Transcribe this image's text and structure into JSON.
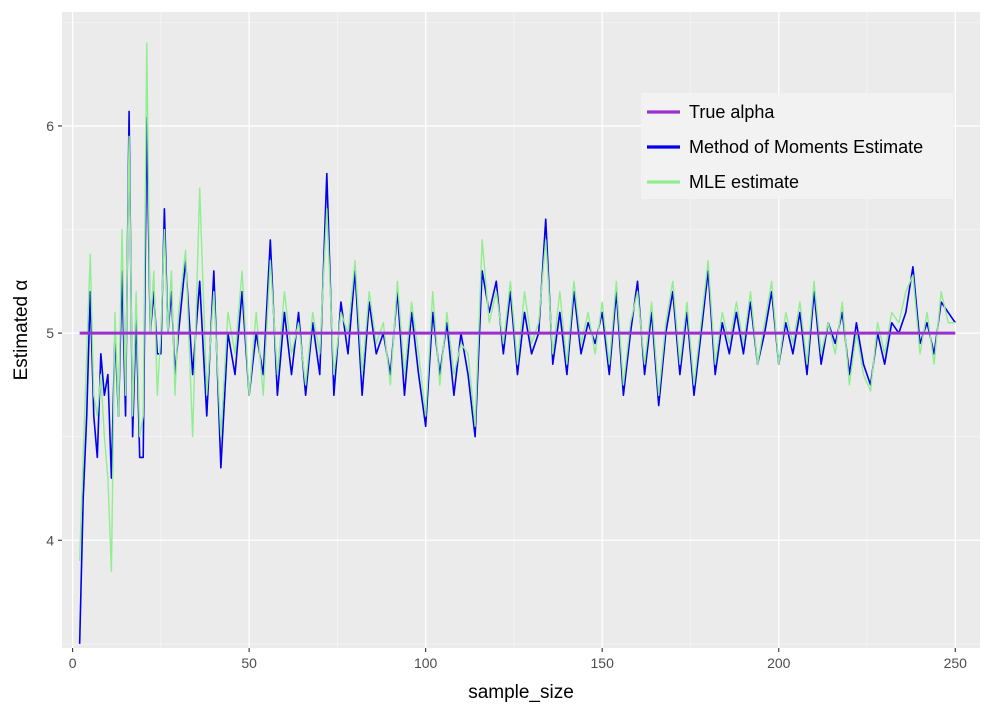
{
  "chart_data": {
    "type": "line",
    "xlabel": "sample_size",
    "ylabel": "Estimated α",
    "xlim": [
      -3,
      257
    ],
    "ylim": [
      3.48,
      6.55
    ],
    "x_ticks": [
      0,
      50,
      100,
      150,
      200,
      250
    ],
    "y_ticks": [
      4,
      5,
      6
    ],
    "grid": true,
    "legend_position": "top-right",
    "colors": {
      "panel": "#ebebeb",
      "grid_major": "#ffffff",
      "grid_minor": "#f5f5f5",
      "true_alpha": "#9b30d0",
      "mom": "#0000ee",
      "mle": "#90ee90"
    },
    "series": [
      {
        "name": "True alpha",
        "key": "true_alpha",
        "x": [
          2,
          250
        ],
        "y": [
          5.0,
          5.0
        ]
      },
      {
        "name": "Method of Moments Estimate",
        "key": "mom",
        "x": [
          2,
          3,
          4,
          5,
          6,
          7,
          8,
          9,
          10,
          11,
          12,
          13,
          14,
          15,
          16,
          17,
          18,
          19,
          20,
          21,
          22,
          23,
          24,
          25,
          26,
          27,
          28,
          29,
          30,
          32,
          34,
          36,
          38,
          40,
          42,
          44,
          46,
          48,
          50,
          52,
          54,
          56,
          58,
          60,
          62,
          64,
          66,
          68,
          70,
          72,
          74,
          76,
          78,
          80,
          82,
          84,
          86,
          88,
          90,
          92,
          94,
          96,
          98,
          100,
          102,
          104,
          106,
          108,
          110,
          112,
          114,
          116,
          118,
          120,
          122,
          124,
          126,
          128,
          130,
          132,
          134,
          136,
          138,
          140,
          142,
          144,
          146,
          148,
          150,
          152,
          154,
          156,
          158,
          160,
          162,
          164,
          166,
          168,
          170,
          172,
          174,
          176,
          178,
          180,
          182,
          184,
          186,
          188,
          190,
          192,
          194,
          196,
          198,
          200,
          202,
          204,
          206,
          208,
          210,
          212,
          214,
          216,
          218,
          220,
          222,
          224,
          226,
          228,
          230,
          232,
          234,
          236,
          238,
          240,
          242,
          244,
          246,
          248,
          250
        ],
        "y": [
          3.5,
          4.2,
          4.6,
          5.2,
          4.6,
          4.4,
          4.9,
          4.7,
          4.8,
          4.3,
          5.0,
          4.6,
          5.3,
          4.6,
          6.07,
          4.5,
          5.1,
          4.4,
          4.4,
          6.04,
          5.0,
          5.2,
          4.9,
          4.9,
          5.6,
          5.0,
          5.2,
          4.8,
          5.0,
          5.35,
          4.8,
          5.25,
          4.6,
          5.3,
          4.35,
          5.0,
          4.8,
          5.2,
          4.7,
          5.0,
          4.8,
          5.45,
          4.7,
          5.1,
          4.8,
          5.1,
          4.7,
          5.05,
          4.8,
          5.77,
          4.7,
          5.15,
          4.9,
          5.3,
          4.7,
          5.15,
          4.9,
          5.0,
          4.8,
          5.2,
          4.7,
          5.1,
          4.8,
          4.55,
          5.1,
          4.8,
          5.05,
          4.7,
          5.0,
          4.8,
          4.5,
          5.3,
          5.1,
          5.25,
          4.9,
          5.2,
          4.8,
          5.1,
          4.9,
          5.0,
          5.55,
          4.85,
          5.1,
          4.8,
          5.2,
          4.9,
          5.05,
          4.95,
          5.1,
          4.8,
          5.2,
          4.7,
          5.0,
          5.25,
          4.8,
          5.1,
          4.65,
          5.0,
          5.2,
          4.8,
          5.1,
          4.7,
          5.0,
          5.3,
          4.8,
          5.05,
          4.9,
          5.1,
          4.9,
          5.15,
          4.85,
          5.0,
          5.2,
          4.85,
          5.05,
          4.9,
          5.1,
          4.8,
          5.2,
          4.85,
          5.05,
          4.95,
          5.1,
          4.8,
          5.05,
          4.85,
          4.75,
          5.0,
          4.85,
          5.05,
          5.0,
          5.1,
          5.32,
          4.95,
          5.05,
          4.9,
          5.15,
          5.1,
          5.05
        ],
        "stroke_width": 1.6
      },
      {
        "name": "MLE estimate",
        "key": "mle",
        "x": [
          2,
          3,
          4,
          5,
          6,
          7,
          8,
          9,
          10,
          11,
          12,
          13,
          14,
          15,
          16,
          17,
          18,
          19,
          20,
          21,
          22,
          23,
          24,
          25,
          26,
          27,
          28,
          29,
          30,
          32,
          34,
          36,
          38,
          40,
          42,
          44,
          46,
          48,
          50,
          52,
          54,
          56,
          58,
          60,
          62,
          64,
          66,
          68,
          70,
          72,
          74,
          76,
          78,
          80,
          82,
          84,
          86,
          88,
          90,
          92,
          94,
          96,
          98,
          100,
          102,
          104,
          106,
          108,
          110,
          112,
          114,
          116,
          118,
          120,
          122,
          124,
          126,
          128,
          130,
          132,
          134,
          136,
          138,
          140,
          142,
          144,
          146,
          148,
          150,
          152,
          154,
          156,
          158,
          160,
          162,
          164,
          166,
          168,
          170,
          172,
          174,
          176,
          178,
          180,
          182,
          184,
          186,
          188,
          190,
          192,
          194,
          196,
          198,
          200,
          202,
          204,
          206,
          208,
          210,
          212,
          214,
          216,
          218,
          220,
          222,
          224,
          226,
          228,
          230,
          232,
          234,
          236,
          238,
          240,
          242,
          244,
          246,
          248,
          250
        ],
        "y": [
          3.9,
          4.4,
          4.9,
          5.38,
          4.7,
          4.6,
          4.8,
          4.5,
          4.3,
          3.85,
          5.1,
          4.6,
          5.5,
          4.7,
          5.95,
          4.6,
          5.2,
          4.5,
          4.6,
          6.4,
          5.0,
          5.3,
          4.7,
          5.0,
          5.5,
          5.0,
          5.3,
          4.7,
          5.1,
          5.4,
          4.5,
          5.7,
          4.7,
          5.2,
          4.5,
          5.1,
          4.9,
          5.3,
          4.7,
          5.1,
          4.7,
          5.35,
          4.8,
          5.2,
          4.9,
          5.05,
          4.75,
          5.1,
          4.9,
          5.6,
          4.8,
          5.1,
          5.0,
          5.35,
          4.8,
          5.2,
          4.95,
          5.05,
          4.75,
          5.25,
          4.8,
          5.15,
          4.9,
          4.6,
          5.2,
          4.75,
          5.1,
          4.8,
          4.95,
          4.9,
          4.55,
          5.45,
          5.05,
          5.2,
          4.95,
          5.25,
          4.85,
          5.2,
          4.95,
          5.05,
          5.45,
          4.9,
          5.2,
          4.85,
          5.25,
          4.95,
          5.1,
          4.9,
          5.15,
          4.85,
          5.25,
          4.75,
          5.05,
          5.2,
          4.85,
          5.15,
          4.7,
          5.05,
          5.25,
          4.85,
          5.15,
          4.75,
          5.05,
          5.35,
          4.85,
          5.1,
          4.95,
          5.15,
          4.95,
          5.2,
          4.85,
          5.05,
          5.25,
          4.85,
          5.1,
          4.95,
          5.15,
          4.85,
          5.25,
          4.9,
          5.05,
          4.9,
          5.15,
          4.75,
          5.0,
          4.8,
          4.72,
          5.05,
          4.9,
          5.1,
          5.05,
          5.2,
          5.28,
          4.9,
          5.1,
          4.85,
          5.2,
          5.05,
          5.05
        ],
        "stroke_width": 1.4
      }
    ]
  }
}
